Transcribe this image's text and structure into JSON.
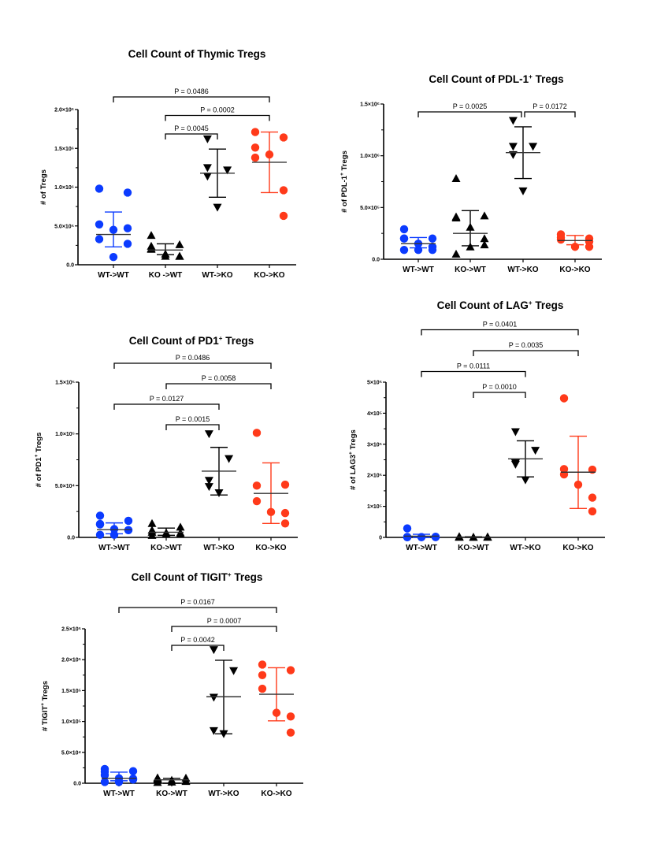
{
  "colors": {
    "WT->WT": "#0B3BFF",
    "KO->WT": "#000000",
    "WT->KO": "#000000",
    "KO->KO": "#FF3A1A"
  },
  "chart_data": [
    {
      "id": "thymic",
      "type": "scatter",
      "title": "Cell Count of Thymic Tregs",
      "title_sup": "",
      "title_rest": "",
      "ylabel": "# of Tregs",
      "ylabel_sup": "",
      "ylabel_rest": "",
      "xlabel": "",
      "categories": [
        "WT->WT",
        "KO ->WT",
        "WT->KO",
        "KO->KO"
      ],
      "ylim": [
        0,
        2000000
      ],
      "yticks": [
        {
          "value": 0,
          "label": "0.0"
        },
        {
          "value": 500000,
          "label": "5.0×10⁵"
        },
        {
          "value": 1000000,
          "label": "1.0×10⁶"
        },
        {
          "value": 1500000,
          "label": "1.5×10⁶"
        },
        {
          "value": 2000000,
          "label": "2.0×10⁶"
        }
      ],
      "series": [
        {
          "name": "WT->WT",
          "marker": "circle",
          "values": [
            980000,
            930000,
            520000,
            330000,
            450000,
            470000,
            270000,
            100000
          ],
          "mean": 390000,
          "err": [
            230000,
            680000
          ]
        },
        {
          "name": "KO->WT",
          "marker": "triangle-up",
          "values": [
            380000,
            260000,
            210000,
            240000,
            140000,
            110000,
            110000,
            110000,
            200000
          ],
          "mean": 190000,
          "err": [
            130000,
            270000
          ]
        },
        {
          "name": "WT->KO",
          "marker": "triangle-down",
          "values": [
            1620000,
            1220000,
            1250000,
            1140000,
            740000
          ],
          "mean": 1180000,
          "err": [
            870000,
            1490000
          ]
        },
        {
          "name": "KO->KO",
          "marker": "circle",
          "values": [
            1710000,
            1640000,
            1510000,
            1380000,
            1420000,
            960000,
            630000
          ],
          "mean": 1320000,
          "err": [
            930000,
            1710000
          ]
        }
      ],
      "comparisons": [
        {
          "from": 0,
          "to": 3,
          "label": "P = 0.0486",
          "level": 3
        },
        {
          "from": 1,
          "to": 3,
          "label": "P = 0.0002",
          "level": 2
        },
        {
          "from": 1,
          "to": 2,
          "label": "P = 0.0045",
          "level": 1
        }
      ]
    },
    {
      "id": "pdl1",
      "type": "scatter",
      "title": "Cell Count of PDL-1",
      "title_sup": "+",
      "title_rest": " Tregs",
      "ylabel": "# of PDL-1",
      "ylabel_sup": "+",
      "ylabel_rest": " Tregs",
      "xlabel": "",
      "categories": [
        "WT->WT",
        "KO->WT",
        "WT->KO",
        "KO->KO"
      ],
      "ylim": [
        0,
        1500000
      ],
      "yticks": [
        {
          "value": 0,
          "label": "0.0"
        },
        {
          "value": 500000,
          "label": "5.0×10⁵"
        },
        {
          "value": 1000000,
          "label": "1.0×10⁶"
        },
        {
          "value": 1500000,
          "label": "1.5×10⁶"
        }
      ],
      "series": [
        {
          "name": "WT->WT",
          "marker": "circle",
          "values": [
            290000,
            200000,
            200000,
            200000,
            150000,
            120000,
            90000,
            90000,
            90000
          ],
          "mean": 150000,
          "err": [
            110000,
            210000
          ]
        },
        {
          "name": "KO->WT",
          "marker": "triangle-up",
          "values": [
            780000,
            420000,
            410000,
            400000,
            310000,
            200000,
            140000,
            120000,
            50000
          ],
          "mean": 250000,
          "err": [
            130000,
            470000
          ]
        },
        {
          "name": "WT->KO",
          "marker": "triangle-down",
          "values": [
            1340000,
            1090000,
            1090000,
            1010000,
            660000
          ],
          "mean": 1030000,
          "err": [
            780000,
            1280000
          ]
        },
        {
          "name": "KO->KO",
          "marker": "circle",
          "values": [
            190000,
            200000,
            210000,
            240000,
            120000,
            170000,
            120000
          ],
          "mean": 180000,
          "err": [
            140000,
            230000
          ]
        }
      ],
      "comparisons": [
        {
          "from": 0,
          "to": 2,
          "label": "P = 0.0025",
          "level": 1
        },
        {
          "from": 2,
          "to": 3,
          "label": "P = 0.0172",
          "level": 1
        }
      ]
    },
    {
      "id": "pd1",
      "type": "scatter",
      "title": "Cell Count of PD1",
      "title_sup": "+",
      "title_rest": " Tregs",
      "ylabel": "# of PD1",
      "ylabel_sup": "+",
      "ylabel_rest": " Tregs",
      "xlabel": "",
      "categories": [
        "WT->WT",
        "KO->WT",
        "WT->KO",
        "KO->KO"
      ],
      "ylim": [
        0,
        150000
      ],
      "yticks": [
        {
          "value": 0,
          "label": "0.0"
        },
        {
          "value": 50000,
          "label": "5.0×10⁴"
        },
        {
          "value": 100000,
          "label": "1.0×10⁵"
        },
        {
          "value": 150000,
          "label": "1.5×10⁵"
        }
      ],
      "series": [
        {
          "name": "WT->WT",
          "marker": "circle",
          "values": [
            21000,
            16000,
            13000,
            12500,
            8000,
            7000,
            7000,
            2500,
            2500
          ],
          "mean": 7500,
          "err": [
            3500,
            14000
          ]
        },
        {
          "name": "KO->WT",
          "marker": "triangle-up",
          "values": [
            13500,
            10000,
            7000,
            5000,
            4500,
            4500,
            3000,
            3000,
            2000
          ],
          "mean": 5000,
          "err": [
            2000,
            9000
          ]
        },
        {
          "name": "WT->KO",
          "marker": "triangle-down",
          "values": [
            100000,
            76000,
            55000,
            49000,
            43000
          ],
          "mean": 64000,
          "err": [
            41000,
            87000
          ]
        },
        {
          "name": "KO->KO",
          "marker": "circle",
          "values": [
            101000,
            51000,
            50000,
            35000,
            24500,
            23500,
            13500
          ],
          "mean": 42500,
          "err": [
            13500,
            72000
          ]
        }
      ],
      "comparisons": [
        {
          "from": 0,
          "to": 3,
          "label": "P = 0.0486",
          "level": 4
        },
        {
          "from": 1,
          "to": 3,
          "label": "P = 0.0058",
          "level": 3
        },
        {
          "from": 0,
          "to": 2,
          "label": "P = 0.0127",
          "level": 2
        },
        {
          "from": 1,
          "to": 2,
          "label": "P = 0.0015",
          "level": 1
        }
      ]
    },
    {
      "id": "lag3",
      "type": "scatter",
      "title": "Cell Count of LAG",
      "title_sup": "+",
      "title_rest": " Tregs",
      "ylabel": "# of LAG3",
      "ylabel_sup": "+",
      "ylabel_rest": " Tregs",
      "xlabel": "",
      "categories": [
        "WT->WT",
        "KO->WT",
        "WT->KO",
        "KO->KO"
      ],
      "ylim": [
        0,
        500000
      ],
      "yticks": [
        {
          "value": 0,
          "label": "0"
        },
        {
          "value": 100000,
          "label": "1×10⁵"
        },
        {
          "value": 200000,
          "label": "2×10⁵"
        },
        {
          "value": 300000,
          "label": "3×10⁵"
        },
        {
          "value": 400000,
          "label": "4×10⁵"
        },
        {
          "value": 500000,
          "label": "5×10⁵"
        }
      ],
      "series": [
        {
          "name": "WT->WT",
          "marker": "circle",
          "values": [
            29000,
            2000,
            1500,
            1000,
            1000,
            1000,
            1000,
            800,
            500
          ],
          "mean": 4000,
          "err": [
            0,
            10000
          ]
        },
        {
          "name": "KO->WT",
          "marker": "triangle-up",
          "values": [
            3000,
            2000,
            2000,
            1500,
            1000,
            1000,
            800,
            600,
            500
          ],
          "mean": 1000,
          "err": [
            0,
            2000
          ]
        },
        {
          "name": "WT->KO",
          "marker": "triangle-down",
          "values": [
            340000,
            280000,
            240000,
            235000,
            185000
          ],
          "mean": 253000,
          "err": [
            195000,
            311000
          ]
        },
        {
          "name": "KO->KO",
          "marker": "circle",
          "values": [
            448000,
            218000,
            220000,
            203000,
            170000,
            128000,
            84000
          ],
          "mean": 210000,
          "err": [
            93000,
            326000
          ]
        }
      ],
      "comparisons": [
        {
          "from": 0,
          "to": 3,
          "label": "P = 0.0401",
          "level": 4
        },
        {
          "from": 1,
          "to": 3,
          "label": "P = 0.0035",
          "level": 3
        },
        {
          "from": 0,
          "to": 2,
          "label": "P = 0.0111",
          "level": 2
        },
        {
          "from": 1,
          "to": 2,
          "label": "P = 0.0010",
          "level": 1
        }
      ]
    },
    {
      "id": "tigit",
      "type": "scatter",
      "title": "Cell Count of TIGIT",
      "title_sup": "+",
      "title_rest": " Tregs",
      "ylabel": "# TIGIT",
      "ylabel_sup": "+",
      "ylabel_rest": " Tregs",
      "xlabel": "",
      "categories": [
        "WT->WT",
        "KO->WT",
        "WT->KO",
        "KO->KO"
      ],
      "ylim": [
        0,
        250000
      ],
      "yticks": [
        {
          "value": 0,
          "label": "0.0"
        },
        {
          "value": 50000,
          "label": "5.0×10⁴"
        },
        {
          "value": 100000,
          "label": "1.0×10⁵"
        },
        {
          "value": 150000,
          "label": "1.5×10⁵"
        },
        {
          "value": 200000,
          "label": "2.0×10⁵"
        },
        {
          "value": 250000,
          "label": "2.5×10⁵"
        }
      ],
      "series": [
        {
          "name": "WT->WT",
          "marker": "circle",
          "values": [
            23000,
            19500,
            18500,
            13000,
            8000,
            7500,
            6000,
            2000,
            2000
          ],
          "mean": 8000,
          "err": [
            4000,
            18000
          ]
        },
        {
          "name": "KO->WT",
          "marker": "triangle-up",
          "values": [
            9000,
            8500,
            7500,
            6000,
            5000,
            4000,
            3000,
            2000,
            1500
          ],
          "mean": 5500,
          "err": [
            0,
            8000
          ]
        },
        {
          "name": "WT->KO",
          "marker": "triangle-down",
          "values": [
            216000,
            182000,
            139000,
            85000,
            80000
          ],
          "mean": 140000,
          "err": [
            80000,
            199000
          ]
        },
        {
          "name": "KO->KO",
          "marker": "circle",
          "values": [
            192000,
            183000,
            175000,
            153000,
            114000,
            108000,
            82000
          ],
          "mean": 144000,
          "err": [
            101000,
            187000
          ]
        }
      ],
      "comparisons": [
        {
          "from": 0,
          "to": 3,
          "label": "P = 0.0167",
          "level": 3
        },
        {
          "from": 1,
          "to": 3,
          "label": "P = 0.0007",
          "level": 2
        },
        {
          "from": 1,
          "to": 2,
          "label": "P = 0.0042",
          "level": 1
        }
      ]
    }
  ]
}
